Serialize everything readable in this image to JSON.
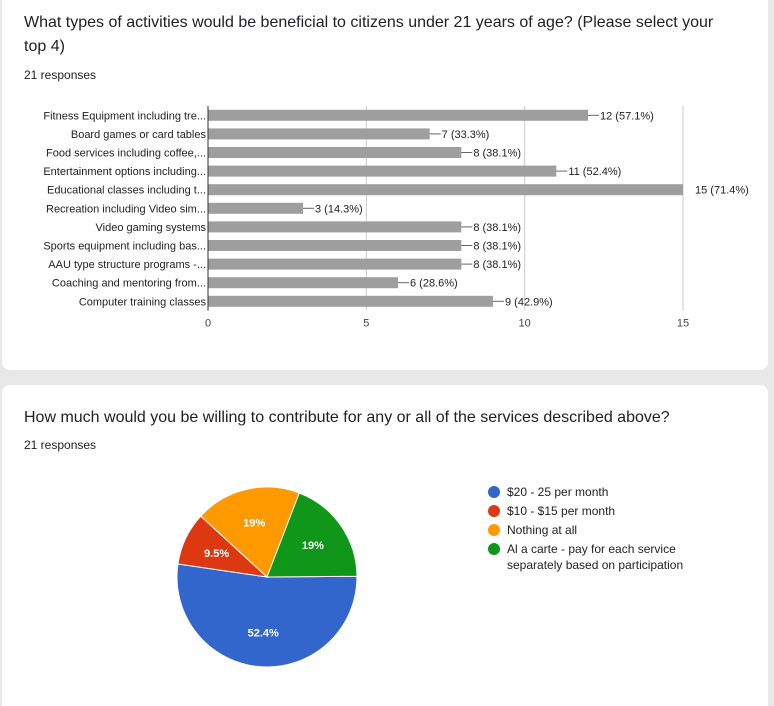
{
  "q1": {
    "title": "What types of activities would be beneficial to citizens under 21 years of age? (Please select your top 4)",
    "responses": "21 responses"
  },
  "q2": {
    "title": "How much would you be willing to contribute for any or all of the services described above?",
    "responses": "21 responses"
  },
  "chart_data": [
    {
      "type": "bar",
      "orientation": "horizontal",
      "categories": [
        "Fitness Equipment including tre...",
        "Board games or card tables",
        "Food services including coffee,...",
        "Entertainment options including...",
        "Educational classes including t...",
        "Recreation including Video sim...",
        "Video gaming systems",
        "Sports equipment including bas...",
        "AAU type structure programs -...",
        "Coaching and mentoring from...",
        "Computer training classes"
      ],
      "values": [
        12,
        7,
        8,
        11,
        15,
        3,
        8,
        8,
        8,
        6,
        9
      ],
      "value_labels": [
        "12 (57.1%)",
        "7 (33.3%)",
        "8 (38.1%)",
        "11 (52.4%)",
        "15 (71.4%)",
        "3 (14.3%)",
        "8 (38.1%)",
        "8 (38.1%)",
        "8 (38.1%)",
        "6 (28.6%)",
        "9 (42.9%)"
      ],
      "xlim": [
        0,
        15
      ],
      "xticks": [
        0,
        5,
        10,
        15
      ],
      "grid": true,
      "bar_color": "#9e9e9e"
    },
    {
      "type": "pie",
      "labels": [
        "$20 - 25 per month",
        "$10 - $15 per month",
        "Nothing at all",
        "Al a carte - pay for each service separately based on participation"
      ],
      "values": [
        52.4,
        9.5,
        19,
        19
      ],
      "value_labels": [
        "52.4%",
        "9.5%",
        "19%",
        "19%"
      ],
      "colors": [
        "#3366cc",
        "#dc3912",
        "#ff9900",
        "#109618"
      ],
      "legend": "right"
    }
  ]
}
